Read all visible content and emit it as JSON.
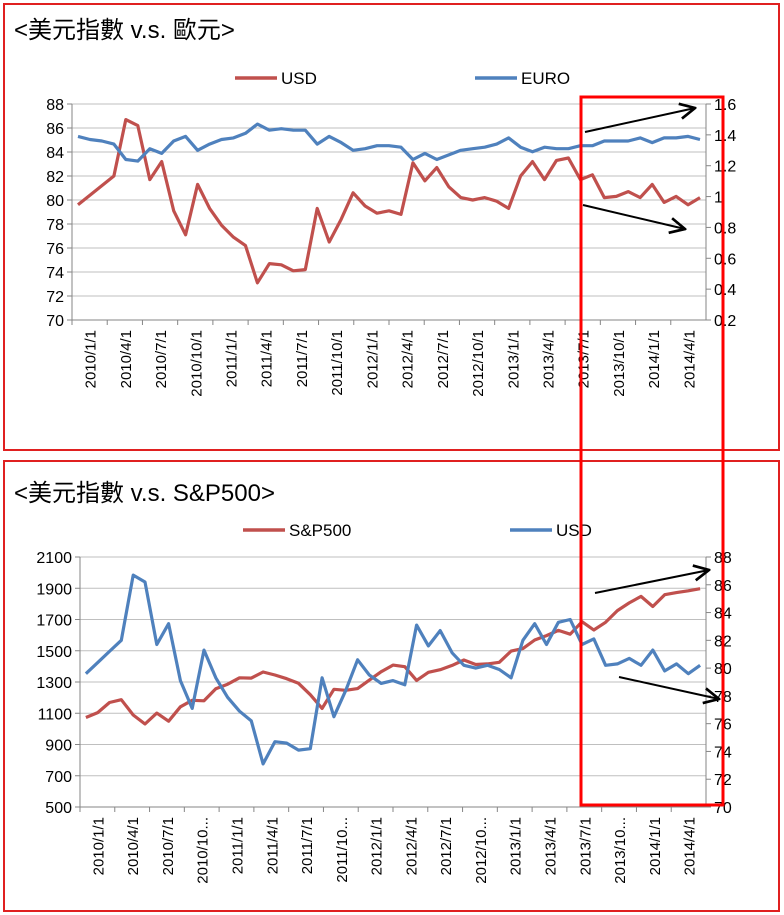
{
  "chart_data": [
    {
      "type": "line",
      "title": "<美元指數 v.s. 歐元>",
      "x_ticks": [
        "2010/1/1",
        "2010/4/1",
        "2010/7/1",
        "2010/10/1",
        "2011/1/1",
        "2011/4/1",
        "2011/7/1",
        "2011/10/1",
        "2012/1/1",
        "2012/4/1",
        "2012/7/1",
        "2012/10/1",
        "2013/1/1",
        "2013/4/1",
        "2013/7/1",
        "2013/10/1",
        "2014/1/1",
        "2014/4/1"
      ],
      "legend": [
        "USD",
        "EURO"
      ],
      "legend_position": "top",
      "grid": true,
      "y_left": {
        "min": 70,
        "max": 88,
        "step": 2,
        "ticks": [
          "70",
          "72",
          "74",
          "76",
          "78",
          "80",
          "82",
          "84",
          "86",
          "88"
        ]
      },
      "y_right": {
        "min": 0.2,
        "max": 1.6,
        "step": 0.2,
        "ticks": [
          "0.2",
          "0.4",
          "0.6",
          "0.8",
          "1",
          "1.2",
          "1.4",
          "1.6"
        ]
      },
      "series": [
        {
          "name": "USD",
          "axis": "left",
          "color": "#c0504d",
          "values": [
            79.6,
            80.4,
            81.2,
            82.0,
            86.7,
            86.2,
            81.7,
            83.2,
            79.1,
            77.1,
            81.3,
            79.3,
            77.9,
            76.9,
            76.2,
            73.1,
            74.7,
            74.6,
            74.1,
            74.2,
            79.3,
            76.5,
            78.4,
            80.6,
            79.5,
            78.9,
            79.1,
            78.8,
            83.1,
            81.6,
            82.7,
            81.1,
            80.2,
            80.0,
            80.2,
            79.9,
            79.3,
            82.0,
            83.2,
            81.7,
            83.3,
            83.5,
            81.7,
            82.1,
            80.2,
            80.3,
            80.7,
            80.2,
            81.3,
            79.8,
            80.3,
            79.6,
            80.2
          ]
        },
        {
          "name": "EURO",
          "axis": "right",
          "color": "#4f81bd",
          "values": [
            1.39,
            1.37,
            1.36,
            1.34,
            1.24,
            1.23,
            1.31,
            1.28,
            1.36,
            1.39,
            1.3,
            1.34,
            1.37,
            1.38,
            1.41,
            1.47,
            1.43,
            1.44,
            1.43,
            1.43,
            1.34,
            1.39,
            1.35,
            1.3,
            1.31,
            1.33,
            1.33,
            1.32,
            1.24,
            1.28,
            1.24,
            1.27,
            1.3,
            1.31,
            1.32,
            1.34,
            1.38,
            1.32,
            1.29,
            1.32,
            1.31,
            1.31,
            1.33,
            1.33,
            1.36,
            1.36,
            1.36,
            1.38,
            1.35,
            1.38,
            1.38,
            1.39,
            1.37
          ]
        }
      ]
    },
    {
      "type": "line",
      "title": "<美元指數 v.s. S&P500>",
      "x_ticks": [
        "2010/1/1",
        "2010/4/1",
        "2010/7/1",
        "2010/10...",
        "2011/1/1",
        "2011/4/1",
        "2011/7/1",
        "2011/10...",
        "2012/1/1",
        "2012/4/1",
        "2012/7/1",
        "2012/10...",
        "2013/1/1",
        "2013/4/1",
        "2013/7/1",
        "2013/10...",
        "2014/1/1",
        "2014/4/1"
      ],
      "legend": [
        "S&P500",
        "USD"
      ],
      "legend_position": "top",
      "grid": true,
      "y_left": {
        "min": 500,
        "max": 2100,
        "step": 200,
        "ticks": [
          "500",
          "700",
          "900",
          "1100",
          "1300",
          "1500",
          "1700",
          "1900",
          "2100"
        ]
      },
      "y_right": {
        "min": 70,
        "max": 88,
        "step": 2,
        "ticks": [
          "70",
          "72",
          "74",
          "76",
          "78",
          "80",
          "82",
          "84",
          "86",
          "88"
        ]
      },
      "series": [
        {
          "name": "S&P500",
          "axis": "left",
          "color": "#c0504d",
          "values": [
            1073,
            1104,
            1169,
            1187,
            1089,
            1031,
            1101,
            1049,
            1141,
            1183,
            1180,
            1257,
            1286,
            1327,
            1325,
            1364,
            1345,
            1321,
            1292,
            1219,
            1131,
            1253,
            1247,
            1258,
            1312,
            1366,
            1408,
            1398,
            1310,
            1362,
            1379,
            1406,
            1441,
            1412,
            1416,
            1426,
            1498,
            1514,
            1569,
            1597,
            1630,
            1606,
            1686,
            1633,
            1682,
            1757,
            1806,
            1848,
            1783,
            1859,
            1872,
            1884,
            1897
          ]
        },
        {
          "name": "USD",
          "axis": "right",
          "color": "#4f81bd",
          "values": [
            79.6,
            80.4,
            81.2,
            82.0,
            86.7,
            86.2,
            81.7,
            83.2,
            79.1,
            77.1,
            81.3,
            79.3,
            77.9,
            76.9,
            76.2,
            73.1,
            74.7,
            74.6,
            74.1,
            74.2,
            79.3,
            76.5,
            78.4,
            80.6,
            79.5,
            78.9,
            79.1,
            78.8,
            83.1,
            81.6,
            82.7,
            81.1,
            80.2,
            80.0,
            80.2,
            79.9,
            79.3,
            82.0,
            83.2,
            81.7,
            83.3,
            83.5,
            81.7,
            82.1,
            80.2,
            80.3,
            80.7,
            80.2,
            81.3,
            79.8,
            80.3,
            79.6,
            80.2
          ]
        }
      ]
    }
  ]
}
